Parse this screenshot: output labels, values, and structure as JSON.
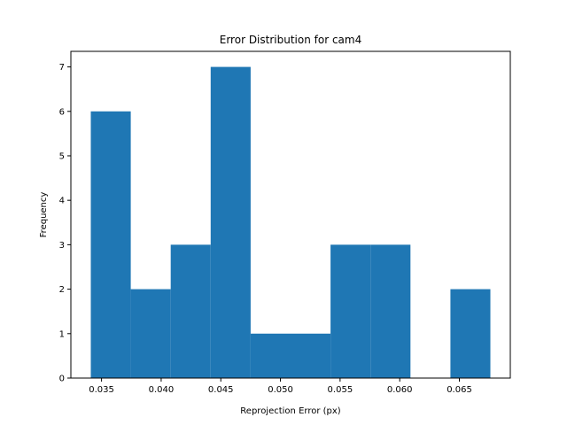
{
  "chart_data": {
    "type": "bar",
    "title": "Error Distribution for cam4",
    "xlabel": "Reprojection Error (px)",
    "ylabel": "Frequency",
    "bin_edges": [
      0.0341,
      0.03745,
      0.0408,
      0.04415,
      0.0475,
      0.05085,
      0.0542,
      0.05755,
      0.0609,
      0.06425,
      0.0676
    ],
    "values": [
      6,
      2,
      3,
      7,
      1,
      1,
      3,
      3,
      0,
      2
    ],
    "xlim": [
      0.03243,
      0.06927
    ],
    "ylim": [
      0,
      7.35
    ],
    "xticks": [
      0.035,
      0.04,
      0.045,
      0.05,
      0.055,
      0.06,
      0.065
    ],
    "xtick_labels": [
      "0.035",
      "0.040",
      "0.045",
      "0.050",
      "0.055",
      "0.060",
      "0.065"
    ],
    "yticks": [
      0,
      1,
      2,
      3,
      4,
      5,
      6,
      7
    ],
    "ytick_labels": [
      "0",
      "1",
      "2",
      "3",
      "4",
      "5",
      "6",
      "7"
    ],
    "bar_color": "#1f77b4",
    "grid": false,
    "legend": "none"
  }
}
